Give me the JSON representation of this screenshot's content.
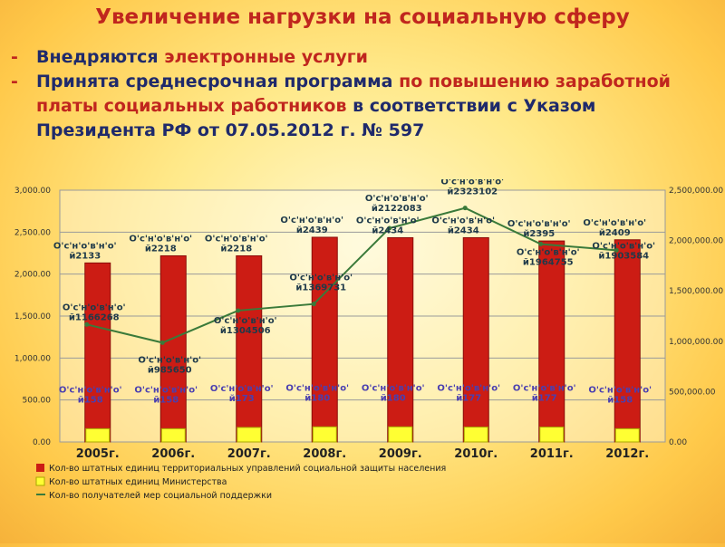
{
  "title": "Увеличение нагрузки на социальную сферу",
  "bullets": [
    {
      "dash": "-",
      "parts": [
        {
          "text": "Внедряются ",
          "tone": "a"
        },
        {
          "text": "электронные услуги",
          "tone": "r"
        }
      ]
    },
    {
      "dash": "-",
      "parts": [
        {
          "text": "Принята среднесрочная программа ",
          "tone": "a"
        },
        {
          "text": "по повышению заработной платы социальных работников",
          "tone": "r"
        },
        {
          "text": " в соответствии с Указом Президента РФ от 07.05.2012 г. № 597",
          "tone": "a"
        }
      ]
    }
  ],
  "colors": {
    "title": "#c0261e",
    "text": "#1f2a6b",
    "bar_staff": "#cc1c14",
    "bar_ministry": "#ffff33",
    "line": "#3a7a3a",
    "marker": "#6a5acd"
  },
  "chart_data": {
    "type": "bar",
    "categories": [
      "2005г.",
      "2006г.",
      "2007г.",
      "2008г.",
      "2009г.",
      "2010г.",
      "2011г.",
      "2012г."
    ],
    "y_left_ticks": [
      "0.00",
      "500.00",
      "1,000.00",
      "1,500.00",
      "2,000.00",
      "2,500.00",
      "3,000.00"
    ],
    "y_right_ticks": [
      "0.00",
      "500,000.00",
      "1,000,000.00",
      "1,500,000.00",
      "2,000,000.00",
      "2,500,000.00"
    ],
    "ylim_left": [
      0,
      3000
    ],
    "ylim_right": [
      0,
      2500000
    ],
    "grid": true,
    "series": [
      {
        "name": "Кол-во штатных единиц территориальных управлений социальной защиты населения",
        "kind": "bar",
        "axis": "left",
        "values": [
          2133,
          2218,
          2218,
          2439,
          2434,
          2434,
          2395,
          2409
        ]
      },
      {
        "name": "Кол-во штатных единиц Министерства",
        "kind": "bar",
        "axis": "left",
        "values": [
          158,
          158,
          173,
          180,
          180,
          177,
          177,
          158
        ]
      },
      {
        "name": "Кол-во получателей мер социальной поддержки",
        "kind": "line",
        "axis": "right",
        "values": [
          1166268,
          985650,
          1304506,
          1369731,
          2122083,
          2323102,
          1964755,
          1903584
        ]
      }
    ],
    "label_prefix": "O'с'н'о'в'н'о'",
    "label_suffix": "й",
    "legend_position": "bottom"
  }
}
